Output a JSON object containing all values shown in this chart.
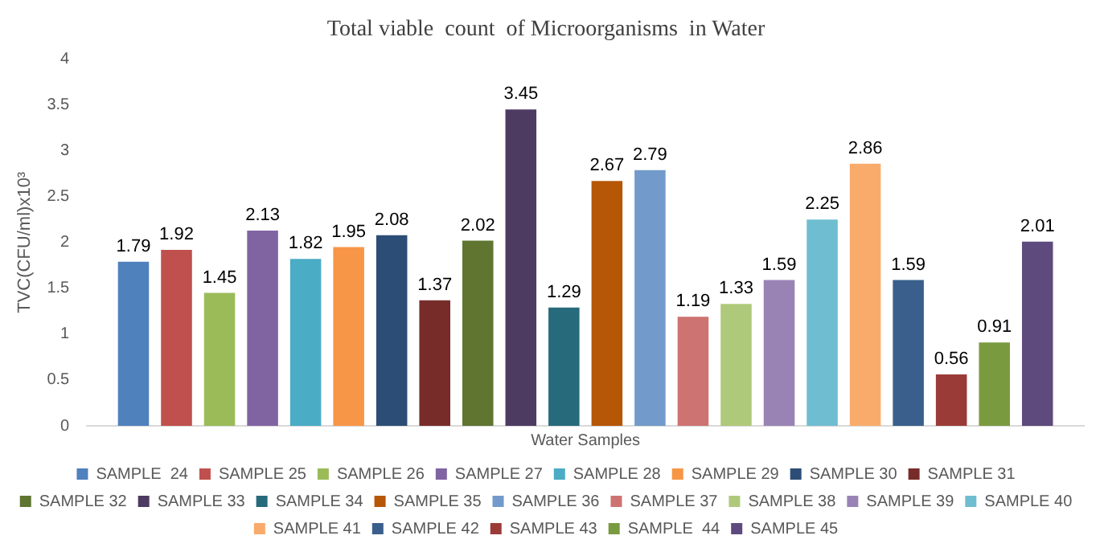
{
  "chart_data": {
    "type": "bar",
    "title": "Total viable  count  of Microorganisms  in Water",
    "ylabel": "TVC(CFU/ml)x10³",
    "categories": [
      "Water Samples"
    ],
    "ylim": [
      0,
      4
    ],
    "yticks": [
      0,
      0.5,
      1,
      1.5,
      2,
      2.5,
      3,
      3.5,
      4
    ],
    "grid": false,
    "legend": "bottom",
    "data_labels": true,
    "series": [
      {
        "name": "SAMPLE  24",
        "color": "#4f81bd",
        "values": [
          1.79
        ]
      },
      {
        "name": "SAMPLE 25",
        "color": "#c0504d",
        "values": [
          1.92
        ]
      },
      {
        "name": "SAMPLE 26",
        "color": "#9bbb59",
        "values": [
          1.45
        ]
      },
      {
        "name": "SAMPLE 27",
        "color": "#8064a2",
        "values": [
          2.13
        ]
      },
      {
        "name": "SAMPLE 28",
        "color": "#4bacc6",
        "values": [
          1.82
        ]
      },
      {
        "name": "SAMPLE 29",
        "color": "#f79646",
        "values": [
          1.95
        ]
      },
      {
        "name": "SAMPLE 30",
        "color": "#2c4d75",
        "values": [
          2.08
        ]
      },
      {
        "name": "SAMPLE 31",
        "color": "#772c2a",
        "values": [
          1.37
        ]
      },
      {
        "name": "SAMPLE 32",
        "color": "#5f7530",
        "values": [
          2.02
        ]
      },
      {
        "name": "SAMPLE 33",
        "color": "#4d3b62",
        "values": [
          3.45
        ]
      },
      {
        "name": "SAMPLE 34",
        "color": "#276a7c",
        "values": [
          1.29
        ]
      },
      {
        "name": "SAMPLE 35",
        "color": "#b65708",
        "values": [
          2.67
        ]
      },
      {
        "name": "SAMPLE 36",
        "color": "#729aca",
        "values": [
          2.79
        ]
      },
      {
        "name": "SAMPLE 37",
        "color": "#cd7371",
        "values": [
          1.19
        ]
      },
      {
        "name": "SAMPLE 38",
        "color": "#afc97a",
        "values": [
          1.33
        ]
      },
      {
        "name": "SAMPLE 39",
        "color": "#9983b5",
        "values": [
          1.59
        ]
      },
      {
        "name": "SAMPLE 40",
        "color": "#6fbdd1",
        "values": [
          2.25
        ]
      },
      {
        "name": "SAMPLE 41",
        "color": "#f9ab6b",
        "values": [
          2.86
        ]
      },
      {
        "name": "SAMPLE 42",
        "color": "#3a5f8c",
        "values": [
          1.59
        ]
      },
      {
        "name": "SAMPLE 43",
        "color": "#9b3b37",
        "values": [
          0.56
        ]
      },
      {
        "name": "SAMPLE  44",
        "color": "#7a9a3f",
        "values": [
          0.91
        ]
      },
      {
        "name": "SAMPLE 45",
        "color": "#5e4a7d",
        "values": [
          2.01
        ]
      }
    ]
  }
}
